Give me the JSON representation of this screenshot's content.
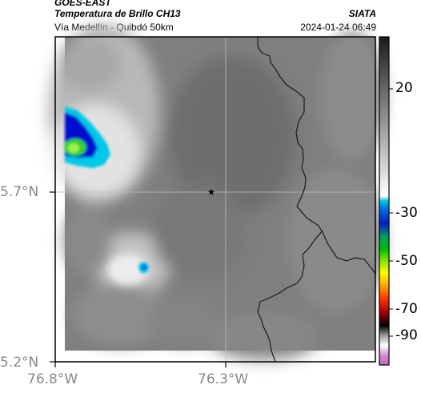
{
  "header": {
    "satellite": "GOES-EAST",
    "product": "Temperatura de Brillo CH13",
    "source": "SIATA",
    "location": "Vía Medellín - Quibdó 50km",
    "datetime": "2024-01-24 06:49"
  },
  "map": {
    "lat_ticks": [
      "5.7°N",
      "5.2°N"
    ],
    "lon_ticks": [
      "76.8°W",
      "76.3°W"
    ],
    "marker_icon": "star-icon",
    "palette": {
      "frame": "#000000",
      "border_line": "#1a1a1a",
      "grid_line": "#bdbdbd",
      "cold_cyan": "#00c8e6",
      "cold_blue": "#0010d0",
      "cold_green": "#30d030"
    }
  },
  "colorbar": {
    "tick_labels": [
      "20",
      "-30",
      "-50",
      "-70",
      "-90"
    ]
  }
}
